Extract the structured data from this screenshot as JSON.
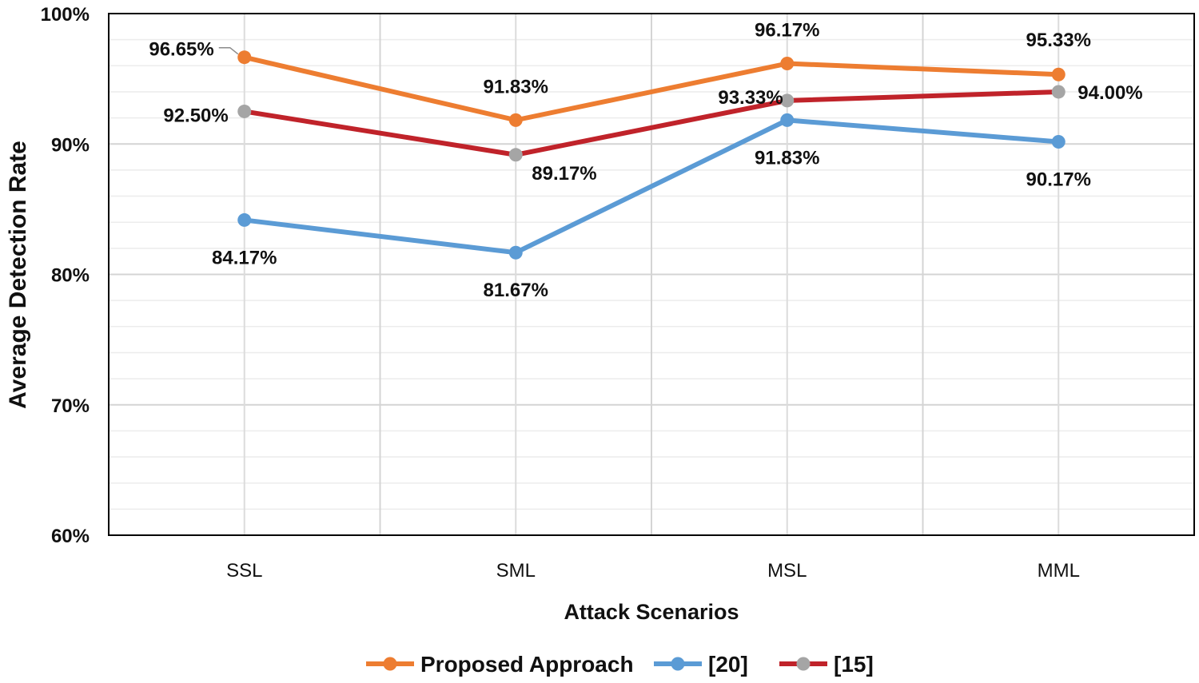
{
  "chart_data": {
    "type": "line",
    "title": "",
    "xlabel": "Attack Scenarios",
    "ylabel": "Average Detection Rate",
    "categories": [
      "SSL",
      "SML",
      "MSL",
      "MML"
    ],
    "ylim": [
      60,
      100
    ],
    "yticks": [
      60,
      70,
      80,
      90,
      100
    ],
    "ytick_labels": [
      "60%",
      "70%",
      "80%",
      "90%",
      "100%"
    ],
    "grid": true,
    "legend_position": "bottom",
    "series": [
      {
        "name": "Proposed Approach",
        "line_color": "#ED7D31",
        "marker_color": "#ED7D31",
        "values": [
          96.65,
          91.83,
          96.17,
          95.33
        ],
        "labels": [
          "96.65%",
          "91.83%",
          "96.17%",
          "95.33%"
        ]
      },
      {
        "name": "[20]",
        "line_color": "#5B9BD5",
        "marker_color": "#5B9BD5",
        "values": [
          84.17,
          81.67,
          91.83,
          90.17
        ],
        "labels": [
          "84.17%",
          "81.67%",
          "91.83%",
          "90.17%"
        ]
      },
      {
        "name": "[15]",
        "line_color": "#C0232A",
        "marker_color": "#A5A5A5",
        "values": [
          92.5,
          89.17,
          93.33,
          94.0
        ],
        "labels": [
          "92.50%",
          "89.17%",
          "93.33%",
          "94.00%"
        ]
      }
    ]
  }
}
